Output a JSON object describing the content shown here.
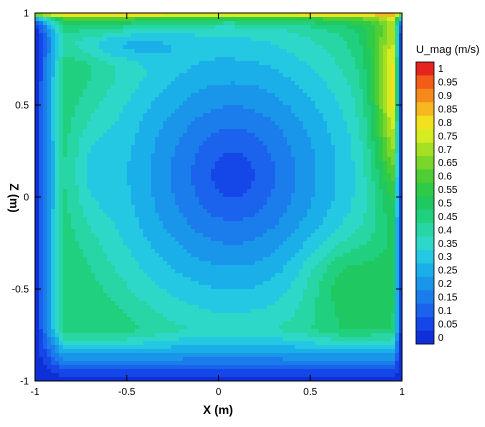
{
  "chart_data": {
    "type": "contour",
    "xlabel": "X (m)",
    "ylabel": "Z (m)",
    "xlim": [
      -1,
      1
    ],
    "ylim": [
      -1,
      1
    ],
    "x_ticks": [
      {
        "value": -1,
        "label": "-1"
      },
      {
        "value": -0.5,
        "label": "-0.5"
      },
      {
        "value": 0,
        "label": "0"
      },
      {
        "value": 0.5,
        "label": "0.5"
      },
      {
        "value": 1,
        "label": "1"
      }
    ],
    "y_ticks": [
      {
        "value": -1,
        "label": "-1"
      },
      {
        "value": -0.5,
        "label": "-0.5"
      },
      {
        "value": 0,
        "label": "0"
      },
      {
        "value": 0.5,
        "label": "0.5"
      },
      {
        "value": 1,
        "label": "1"
      }
    ],
    "legend": {
      "title": "U_mag (m/s)",
      "placement": "right",
      "levels": [
        "1",
        "0.95",
        "0.9",
        "0.85",
        "0.8",
        "0.75",
        "0.7",
        "0.65",
        "0.6",
        "0.55",
        "0.5",
        "0.45",
        "0.4",
        "0.35",
        "0.3",
        "0.25",
        "0.2",
        "0.15",
        "0.1",
        "0.05",
        "0"
      ],
      "colors": [
        "#e52420",
        "#f25b18",
        "#f58a1c",
        "#f7b71f",
        "#f2e11e",
        "#d6ec21",
        "#a7e022",
        "#79d72b",
        "#4fcd34",
        "#2fcb48",
        "#20c861",
        "#21d07f",
        "#27d6a4",
        "#2dd8c8",
        "#25c8e2",
        "#1aafe8",
        "#1996ea",
        "#1b7ceb",
        "#1b62ec",
        "#1446e8",
        "#0f2fd8"
      ]
    },
    "grid": false,
    "field": {
      "lid_velocity": 1,
      "vortex_center": [
        0.08,
        0.12
      ],
      "vortex_core_speed": 0.05,
      "side_lobe_center": [
        -0.68,
        0.15
      ],
      "right_wall_max_speed": 0.8,
      "bottom_band_speed": 0.05
    }
  }
}
